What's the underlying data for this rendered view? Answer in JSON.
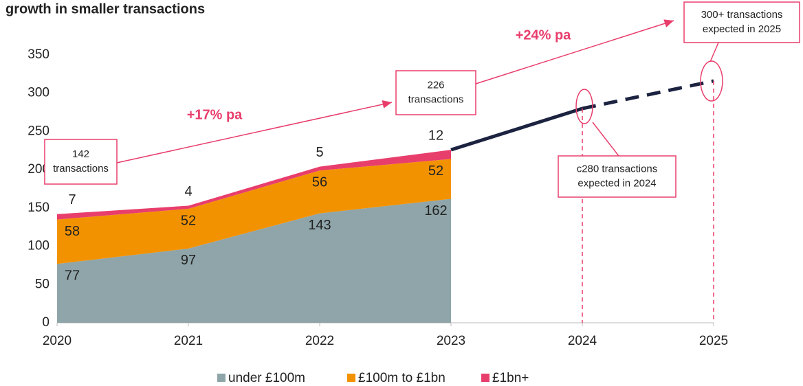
{
  "chart_data": {
    "type": "area",
    "title": "growth in smaller transactions",
    "x": [
      2020,
      2021,
      2022,
      2023
    ],
    "xlim": [
      2020,
      2025
    ],
    "xticks": [
      2020,
      2021,
      2022,
      2023,
      2024,
      2025
    ],
    "ylim": [
      0,
      350
    ],
    "yticks": [
      0,
      50,
      100,
      150,
      200,
      250,
      300,
      350
    ],
    "stacked": true,
    "series": [
      {
        "name": "under £100m",
        "color": "#8fa5a9",
        "values": [
          77,
          97,
          143,
          162
        ]
      },
      {
        "name": "£100m to £1bn",
        "color": "#f39200",
        "values": [
          58,
          52,
          56,
          52
        ]
      },
      {
        "name": "£1bn+",
        "color": "#e83e6c",
        "values": [
          7,
          4,
          5,
          12
        ]
      }
    ],
    "lines": [
      {
        "x": [
          2023,
          2024
        ],
        "values": [
          226,
          280
        ],
        "color": "#1c2340",
        "dashed": false
      },
      {
        "x": [
          2024,
          2025
        ],
        "values": [
          280,
          316
        ],
        "color": "#1c2340",
        "dashed": true
      }
    ],
    "growth_labels": [
      "+17% pa",
      "+24% pa"
    ],
    "annotations": [
      {
        "lines": [
          "142",
          "transactions"
        ]
      },
      {
        "lines": [
          "226",
          "transactions"
        ]
      },
      {
        "lines": [
          "c280 transactions",
          "expected in 2024"
        ]
      },
      {
        "lines": [
          "300+ transactions",
          "expected in 2025"
        ]
      }
    ]
  }
}
